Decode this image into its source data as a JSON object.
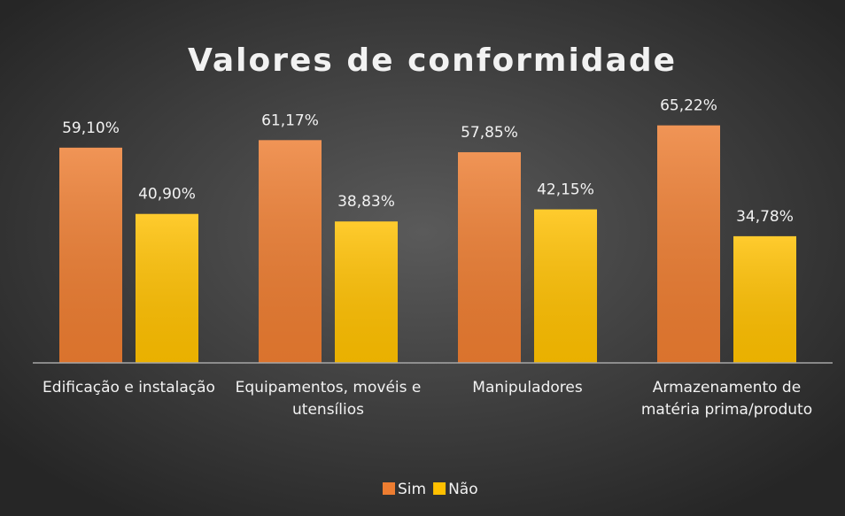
{
  "chart_data": {
    "type": "bar",
    "title": "Valores de conformidade",
    "categories": [
      "Edificação e instalação",
      "Equipamentos, movéis e utensílios",
      "Manipuladores",
      "Armazenamento de matéria prima/produto"
    ],
    "series": [
      {
        "name": "Sim",
        "color": "#ed7d31",
        "values": [
          59.1,
          61.17,
          57.85,
          65.22
        ],
        "value_labels": [
          "59,10%",
          "61,17%",
          "57,85%",
          "65,22%"
        ]
      },
      {
        "name": "Não",
        "color": "#ffc000",
        "values": [
          40.9,
          38.83,
          42.15,
          34.78
        ],
        "value_labels": [
          "40,90%",
          "38,83%",
          "42,15%",
          "34,78%"
        ]
      }
    ],
    "ylim": [
      0,
      70
    ],
    "legend": "bottom"
  }
}
